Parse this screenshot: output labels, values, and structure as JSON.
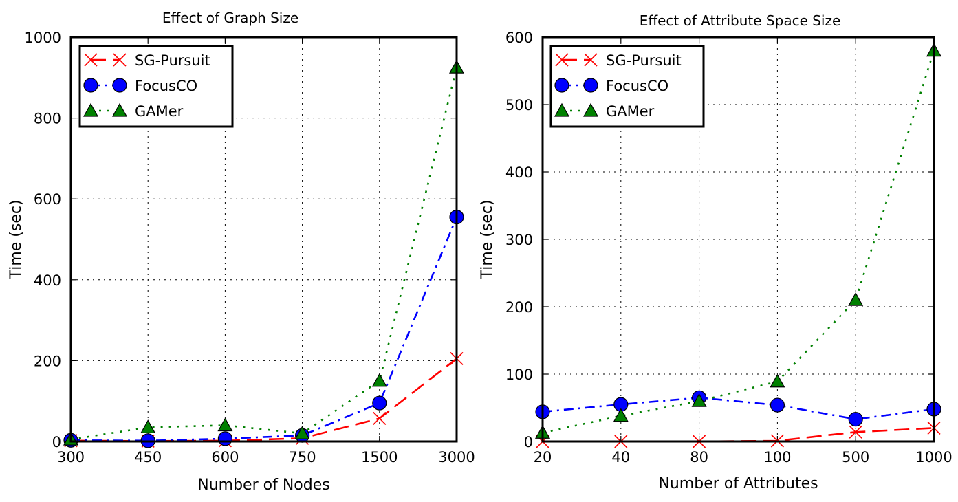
{
  "chart_data": [
    {
      "type": "line",
      "title": "Effect of Graph Size",
      "xlabel": "Number of Nodes",
      "ylabel": "Time (sec)",
      "categories": [
        "300",
        "450",
        "600",
        "750",
        "1500",
        "3000"
      ],
      "ylim": [
        0,
        1000
      ],
      "yticks": [
        "0",
        "200",
        "400",
        "600",
        "800",
        "1000"
      ],
      "grid": true,
      "legend_position": "top-left",
      "series": [
        {
          "name": "SG-Pursuit",
          "color": "#ff0000",
          "marker": "x",
          "linestyle": "dashed",
          "values": [
            2,
            1,
            2,
            8,
            57,
            205
          ]
        },
        {
          "name": "FocusCO",
          "color": "#0000ff",
          "marker": "circle",
          "linestyle": "dashdot",
          "values": [
            3,
            2,
            7,
            15,
            95,
            555
          ]
        },
        {
          "name": "GAMer",
          "color": "#008000",
          "marker": "triangle",
          "linestyle": "dotted",
          "values": [
            5,
            35,
            40,
            20,
            150,
            925
          ]
        }
      ]
    },
    {
      "type": "line",
      "title": "Effect of Attribute Space Size",
      "xlabel": "Number of Attributes",
      "ylabel": "Time (sec)",
      "categories": [
        "20",
        "40",
        "80",
        "100",
        "500",
        "1000"
      ],
      "ylim": [
        0,
        600
      ],
      "yticks": [
        "0",
        "100",
        "200",
        "300",
        "400",
        "500",
        "600"
      ],
      "grid": true,
      "legend_position": "top-left",
      "series": [
        {
          "name": "SG-Pursuit",
          "color": "#ff0000",
          "marker": "x",
          "linestyle": "dashed",
          "values": [
            0,
            0,
            0,
            1,
            14,
            20
          ]
        },
        {
          "name": "FocusCO",
          "color": "#0000ff",
          "marker": "circle",
          "linestyle": "dashdot",
          "values": [
            44,
            55,
            65,
            54,
            33,
            48
          ]
        },
        {
          "name": "GAMer",
          "color": "#008000",
          "marker": "triangle",
          "linestyle": "dotted",
          "values": [
            13,
            38,
            60,
            89,
            210,
            580
          ]
        }
      ]
    }
  ]
}
